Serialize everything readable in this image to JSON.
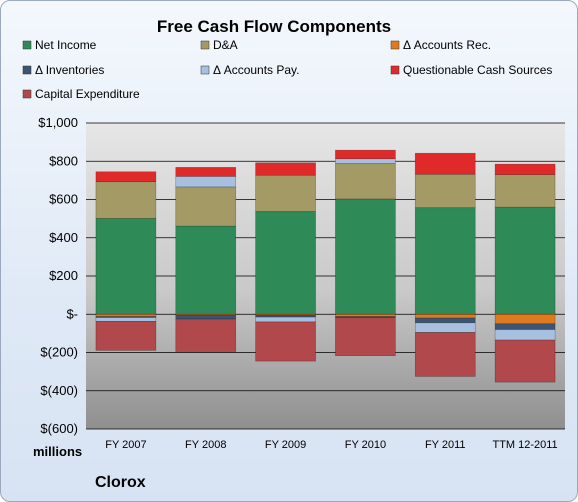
{
  "chart_data": {
    "type": "bar",
    "stacked": true,
    "title": "Free Cash Flow Components",
    "unit_label": "millions",
    "company": "Clorox",
    "categories": [
      "FY 2007",
      "FY 2008",
      "FY 2009",
      "FY 2010",
      "FY 2011",
      "TTM 12-2011"
    ],
    "ylim": [
      -600,
      1000
    ],
    "yticks": [
      {
        "value": 1000,
        "label": "$1,000"
      },
      {
        "value": 800,
        "label": "$800"
      },
      {
        "value": 600,
        "label": "$600"
      },
      {
        "value": 400,
        "label": "$400"
      },
      {
        "value": 200,
        "label": "$200"
      },
      {
        "value": 0,
        "label": "$-"
      },
      {
        "value": -200,
        "label": "$(200)"
      },
      {
        "value": -400,
        "label": "$(400)"
      },
      {
        "value": -600,
        "label": "$(600)"
      }
    ],
    "grid": true,
    "legend_position": "top",
    "series": [
      {
        "name": "Net Income",
        "color": "#2e8b57",
        "values": [
          501,
          461,
          537,
          603,
          557,
          560
        ]
      },
      {
        "name": "D&A",
        "color": "#a49a66",
        "values": [
          192,
          205,
          190,
          185,
          175,
          170
        ]
      },
      {
        "name": "Δ Accounts Rec.",
        "color": "#e07a1f",
        "values": [
          -12,
          -5,
          -5,
          -12,
          -20,
          -50
        ]
      },
      {
        "name": "Δ Inventories",
        "color": "#3c5573",
        "values": [
          -5,
          -20,
          -10,
          -5,
          -25,
          -30
        ]
      },
      {
        "name": "Δ Accounts Pay.",
        "color": "#a8c0df",
        "values": [
          -20,
          55,
          -25,
          25,
          -50,
          -55
        ]
      },
      {
        "name": "Questionable Cash Sources",
        "color": "#e02a2a",
        "values": [
          52,
          47,
          65,
          45,
          110,
          55
        ]
      },
      {
        "name": "Capital Expenditure",
        "color": "#b0484c",
        "values": [
          -152,
          -170,
          -205,
          -200,
          -230,
          -220
        ]
      }
    ]
  }
}
